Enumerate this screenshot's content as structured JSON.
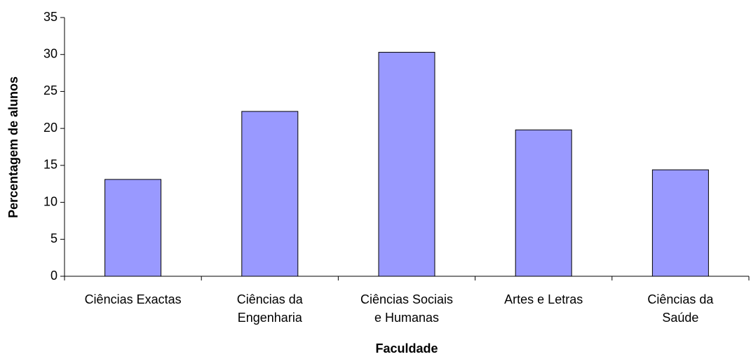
{
  "chart_data": {
    "type": "bar",
    "categories": [
      "Ciências Exactas",
      "Ciências da\nEngenharia",
      "Ciências Sociais\ne Humanas",
      "Artes e Letras",
      "Ciências da\nSaúde"
    ],
    "values": [
      13.1,
      22.3,
      30.3,
      19.8,
      14.4
    ],
    "color": "#9999ff",
    "x_label": "Faculdade",
    "y_label": "Percentagem de alunos",
    "ylim": [
      0,
      35
    ],
    "yticks": [
      0,
      5,
      10,
      15,
      20,
      25,
      30,
      35
    ],
    "grid": false
  }
}
